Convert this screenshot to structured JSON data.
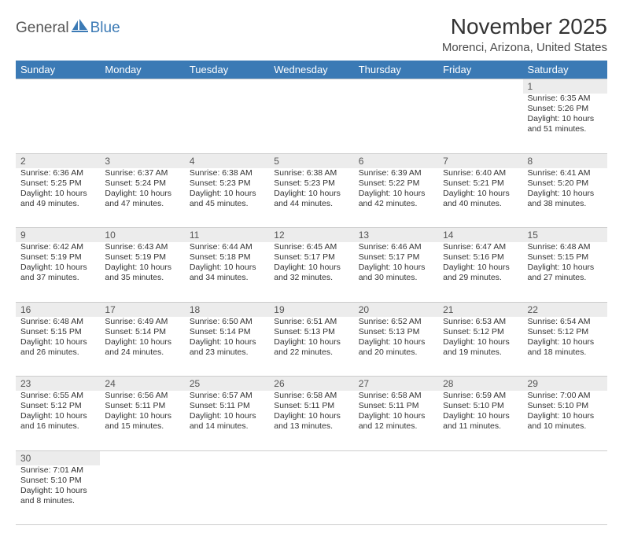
{
  "logo": {
    "text1": "General",
    "text2": "Blue"
  },
  "title": "November 2025",
  "subtitle": "Morenci, Arizona, United States",
  "colors": {
    "header_bg": "#3b7ab5",
    "header_text": "#ffffff",
    "daynum_bg": "#ececec",
    "border": "#cccccc",
    "text": "#333333",
    "logo_gray": "#555555",
    "logo_blue": "#3b7ab5"
  },
  "fonts": {
    "title_size": 28,
    "subtitle_size": 15,
    "header_size": 13,
    "cell_size": 10.5,
    "daynum_size": 12
  },
  "day_headers": [
    "Sunday",
    "Monday",
    "Tuesday",
    "Wednesday",
    "Thursday",
    "Friday",
    "Saturday"
  ],
  "weeks": [
    {
      "nums": [
        "",
        "",
        "",
        "",
        "",
        "",
        "1"
      ],
      "cells": [
        null,
        null,
        null,
        null,
        null,
        null,
        {
          "sunrise": "Sunrise: 6:35 AM",
          "sunset": "Sunset: 5:26 PM",
          "day1": "Daylight: 10 hours",
          "day2": "and 51 minutes."
        }
      ]
    },
    {
      "nums": [
        "2",
        "3",
        "4",
        "5",
        "6",
        "7",
        "8"
      ],
      "cells": [
        {
          "sunrise": "Sunrise: 6:36 AM",
          "sunset": "Sunset: 5:25 PM",
          "day1": "Daylight: 10 hours",
          "day2": "and 49 minutes."
        },
        {
          "sunrise": "Sunrise: 6:37 AM",
          "sunset": "Sunset: 5:24 PM",
          "day1": "Daylight: 10 hours",
          "day2": "and 47 minutes."
        },
        {
          "sunrise": "Sunrise: 6:38 AM",
          "sunset": "Sunset: 5:23 PM",
          "day1": "Daylight: 10 hours",
          "day2": "and 45 minutes."
        },
        {
          "sunrise": "Sunrise: 6:38 AM",
          "sunset": "Sunset: 5:23 PM",
          "day1": "Daylight: 10 hours",
          "day2": "and 44 minutes."
        },
        {
          "sunrise": "Sunrise: 6:39 AM",
          "sunset": "Sunset: 5:22 PM",
          "day1": "Daylight: 10 hours",
          "day2": "and 42 minutes."
        },
        {
          "sunrise": "Sunrise: 6:40 AM",
          "sunset": "Sunset: 5:21 PM",
          "day1": "Daylight: 10 hours",
          "day2": "and 40 minutes."
        },
        {
          "sunrise": "Sunrise: 6:41 AM",
          "sunset": "Sunset: 5:20 PM",
          "day1": "Daylight: 10 hours",
          "day2": "and 38 minutes."
        }
      ]
    },
    {
      "nums": [
        "9",
        "10",
        "11",
        "12",
        "13",
        "14",
        "15"
      ],
      "cells": [
        {
          "sunrise": "Sunrise: 6:42 AM",
          "sunset": "Sunset: 5:19 PM",
          "day1": "Daylight: 10 hours",
          "day2": "and 37 minutes."
        },
        {
          "sunrise": "Sunrise: 6:43 AM",
          "sunset": "Sunset: 5:19 PM",
          "day1": "Daylight: 10 hours",
          "day2": "and 35 minutes."
        },
        {
          "sunrise": "Sunrise: 6:44 AM",
          "sunset": "Sunset: 5:18 PM",
          "day1": "Daylight: 10 hours",
          "day2": "and 34 minutes."
        },
        {
          "sunrise": "Sunrise: 6:45 AM",
          "sunset": "Sunset: 5:17 PM",
          "day1": "Daylight: 10 hours",
          "day2": "and 32 minutes."
        },
        {
          "sunrise": "Sunrise: 6:46 AM",
          "sunset": "Sunset: 5:17 PM",
          "day1": "Daylight: 10 hours",
          "day2": "and 30 minutes."
        },
        {
          "sunrise": "Sunrise: 6:47 AM",
          "sunset": "Sunset: 5:16 PM",
          "day1": "Daylight: 10 hours",
          "day2": "and 29 minutes."
        },
        {
          "sunrise": "Sunrise: 6:48 AM",
          "sunset": "Sunset: 5:15 PM",
          "day1": "Daylight: 10 hours",
          "day2": "and 27 minutes."
        }
      ]
    },
    {
      "nums": [
        "16",
        "17",
        "18",
        "19",
        "20",
        "21",
        "22"
      ],
      "cells": [
        {
          "sunrise": "Sunrise: 6:48 AM",
          "sunset": "Sunset: 5:15 PM",
          "day1": "Daylight: 10 hours",
          "day2": "and 26 minutes."
        },
        {
          "sunrise": "Sunrise: 6:49 AM",
          "sunset": "Sunset: 5:14 PM",
          "day1": "Daylight: 10 hours",
          "day2": "and 24 minutes."
        },
        {
          "sunrise": "Sunrise: 6:50 AM",
          "sunset": "Sunset: 5:14 PM",
          "day1": "Daylight: 10 hours",
          "day2": "and 23 minutes."
        },
        {
          "sunrise": "Sunrise: 6:51 AM",
          "sunset": "Sunset: 5:13 PM",
          "day1": "Daylight: 10 hours",
          "day2": "and 22 minutes."
        },
        {
          "sunrise": "Sunrise: 6:52 AM",
          "sunset": "Sunset: 5:13 PM",
          "day1": "Daylight: 10 hours",
          "day2": "and 20 minutes."
        },
        {
          "sunrise": "Sunrise: 6:53 AM",
          "sunset": "Sunset: 5:12 PM",
          "day1": "Daylight: 10 hours",
          "day2": "and 19 minutes."
        },
        {
          "sunrise": "Sunrise: 6:54 AM",
          "sunset": "Sunset: 5:12 PM",
          "day1": "Daylight: 10 hours",
          "day2": "and 18 minutes."
        }
      ]
    },
    {
      "nums": [
        "23",
        "24",
        "25",
        "26",
        "27",
        "28",
        "29"
      ],
      "cells": [
        {
          "sunrise": "Sunrise: 6:55 AM",
          "sunset": "Sunset: 5:12 PM",
          "day1": "Daylight: 10 hours",
          "day2": "and 16 minutes."
        },
        {
          "sunrise": "Sunrise: 6:56 AM",
          "sunset": "Sunset: 5:11 PM",
          "day1": "Daylight: 10 hours",
          "day2": "and 15 minutes."
        },
        {
          "sunrise": "Sunrise: 6:57 AM",
          "sunset": "Sunset: 5:11 PM",
          "day1": "Daylight: 10 hours",
          "day2": "and 14 minutes."
        },
        {
          "sunrise": "Sunrise: 6:58 AM",
          "sunset": "Sunset: 5:11 PM",
          "day1": "Daylight: 10 hours",
          "day2": "and 13 minutes."
        },
        {
          "sunrise": "Sunrise: 6:58 AM",
          "sunset": "Sunset: 5:11 PM",
          "day1": "Daylight: 10 hours",
          "day2": "and 12 minutes."
        },
        {
          "sunrise": "Sunrise: 6:59 AM",
          "sunset": "Sunset: 5:10 PM",
          "day1": "Daylight: 10 hours",
          "day2": "and 11 minutes."
        },
        {
          "sunrise": "Sunrise: 7:00 AM",
          "sunset": "Sunset: 5:10 PM",
          "day1": "Daylight: 10 hours",
          "day2": "and 10 minutes."
        }
      ]
    },
    {
      "nums": [
        "30",
        "",
        "",
        "",
        "",
        "",
        ""
      ],
      "cells": [
        {
          "sunrise": "Sunrise: 7:01 AM",
          "sunset": "Sunset: 5:10 PM",
          "day1": "Daylight: 10 hours",
          "day2": "and 8 minutes."
        },
        null,
        null,
        null,
        null,
        null,
        null
      ]
    }
  ]
}
